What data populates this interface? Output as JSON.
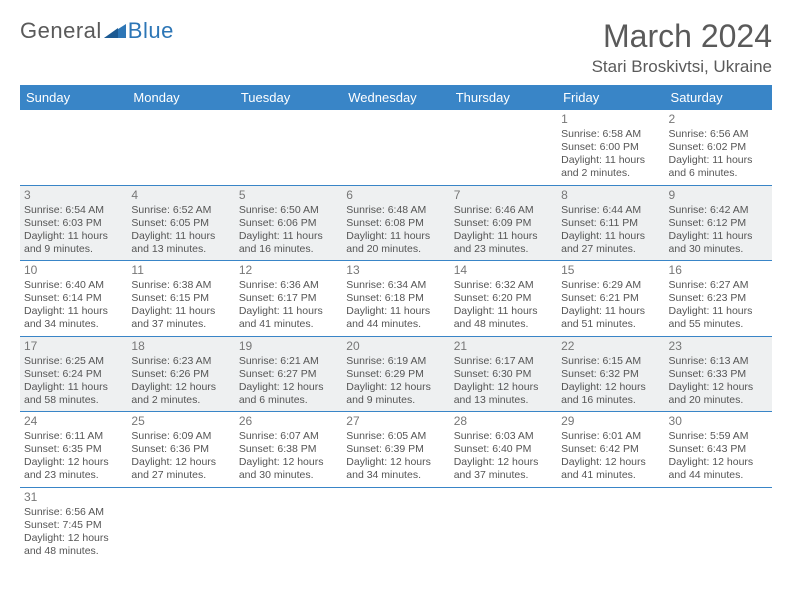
{
  "logo": {
    "part1": "General",
    "part2": "Blue"
  },
  "title": "March 2024",
  "location": "Stari Broskivtsi, Ukraine",
  "colors": {
    "header_bg": "#3985c7",
    "header_text": "#ffffff",
    "row_even_bg": "#eef0f1",
    "row_odd_bg": "#ffffff",
    "divider": "#3985c7",
    "body_text": "#555555",
    "daynum_text": "#777777",
    "title_text": "#5a5a5a",
    "logo_gray": "#5a5a5a",
    "logo_blue": "#2d76b6"
  },
  "weekdays": [
    "Sunday",
    "Monday",
    "Tuesday",
    "Wednesday",
    "Thursday",
    "Friday",
    "Saturday"
  ],
  "weeks": [
    [
      null,
      null,
      null,
      null,
      null,
      {
        "day": "1",
        "sunrise": "Sunrise: 6:58 AM",
        "sunset": "Sunset: 6:00 PM",
        "daylight": "Daylight: 11 hours and 2 minutes."
      },
      {
        "day": "2",
        "sunrise": "Sunrise: 6:56 AM",
        "sunset": "Sunset: 6:02 PM",
        "daylight": "Daylight: 11 hours and 6 minutes."
      }
    ],
    [
      {
        "day": "3",
        "sunrise": "Sunrise: 6:54 AM",
        "sunset": "Sunset: 6:03 PM",
        "daylight": "Daylight: 11 hours and 9 minutes."
      },
      {
        "day": "4",
        "sunrise": "Sunrise: 6:52 AM",
        "sunset": "Sunset: 6:05 PM",
        "daylight": "Daylight: 11 hours and 13 minutes."
      },
      {
        "day": "5",
        "sunrise": "Sunrise: 6:50 AM",
        "sunset": "Sunset: 6:06 PM",
        "daylight": "Daylight: 11 hours and 16 minutes."
      },
      {
        "day": "6",
        "sunrise": "Sunrise: 6:48 AM",
        "sunset": "Sunset: 6:08 PM",
        "daylight": "Daylight: 11 hours and 20 minutes."
      },
      {
        "day": "7",
        "sunrise": "Sunrise: 6:46 AM",
        "sunset": "Sunset: 6:09 PM",
        "daylight": "Daylight: 11 hours and 23 minutes."
      },
      {
        "day": "8",
        "sunrise": "Sunrise: 6:44 AM",
        "sunset": "Sunset: 6:11 PM",
        "daylight": "Daylight: 11 hours and 27 minutes."
      },
      {
        "day": "9",
        "sunrise": "Sunrise: 6:42 AM",
        "sunset": "Sunset: 6:12 PM",
        "daylight": "Daylight: 11 hours and 30 minutes."
      }
    ],
    [
      {
        "day": "10",
        "sunrise": "Sunrise: 6:40 AM",
        "sunset": "Sunset: 6:14 PM",
        "daylight": "Daylight: 11 hours and 34 minutes."
      },
      {
        "day": "11",
        "sunrise": "Sunrise: 6:38 AM",
        "sunset": "Sunset: 6:15 PM",
        "daylight": "Daylight: 11 hours and 37 minutes."
      },
      {
        "day": "12",
        "sunrise": "Sunrise: 6:36 AM",
        "sunset": "Sunset: 6:17 PM",
        "daylight": "Daylight: 11 hours and 41 minutes."
      },
      {
        "day": "13",
        "sunrise": "Sunrise: 6:34 AM",
        "sunset": "Sunset: 6:18 PM",
        "daylight": "Daylight: 11 hours and 44 minutes."
      },
      {
        "day": "14",
        "sunrise": "Sunrise: 6:32 AM",
        "sunset": "Sunset: 6:20 PM",
        "daylight": "Daylight: 11 hours and 48 minutes."
      },
      {
        "day": "15",
        "sunrise": "Sunrise: 6:29 AM",
        "sunset": "Sunset: 6:21 PM",
        "daylight": "Daylight: 11 hours and 51 minutes."
      },
      {
        "day": "16",
        "sunrise": "Sunrise: 6:27 AM",
        "sunset": "Sunset: 6:23 PM",
        "daylight": "Daylight: 11 hours and 55 minutes."
      }
    ],
    [
      {
        "day": "17",
        "sunrise": "Sunrise: 6:25 AM",
        "sunset": "Sunset: 6:24 PM",
        "daylight": "Daylight: 11 hours and 58 minutes."
      },
      {
        "day": "18",
        "sunrise": "Sunrise: 6:23 AM",
        "sunset": "Sunset: 6:26 PM",
        "daylight": "Daylight: 12 hours and 2 minutes."
      },
      {
        "day": "19",
        "sunrise": "Sunrise: 6:21 AM",
        "sunset": "Sunset: 6:27 PM",
        "daylight": "Daylight: 12 hours and 6 minutes."
      },
      {
        "day": "20",
        "sunrise": "Sunrise: 6:19 AM",
        "sunset": "Sunset: 6:29 PM",
        "daylight": "Daylight: 12 hours and 9 minutes."
      },
      {
        "day": "21",
        "sunrise": "Sunrise: 6:17 AM",
        "sunset": "Sunset: 6:30 PM",
        "daylight": "Daylight: 12 hours and 13 minutes."
      },
      {
        "day": "22",
        "sunrise": "Sunrise: 6:15 AM",
        "sunset": "Sunset: 6:32 PM",
        "daylight": "Daylight: 12 hours and 16 minutes."
      },
      {
        "day": "23",
        "sunrise": "Sunrise: 6:13 AM",
        "sunset": "Sunset: 6:33 PM",
        "daylight": "Daylight: 12 hours and 20 minutes."
      }
    ],
    [
      {
        "day": "24",
        "sunrise": "Sunrise: 6:11 AM",
        "sunset": "Sunset: 6:35 PM",
        "daylight": "Daylight: 12 hours and 23 minutes."
      },
      {
        "day": "25",
        "sunrise": "Sunrise: 6:09 AM",
        "sunset": "Sunset: 6:36 PM",
        "daylight": "Daylight: 12 hours and 27 minutes."
      },
      {
        "day": "26",
        "sunrise": "Sunrise: 6:07 AM",
        "sunset": "Sunset: 6:38 PM",
        "daylight": "Daylight: 12 hours and 30 minutes."
      },
      {
        "day": "27",
        "sunrise": "Sunrise: 6:05 AM",
        "sunset": "Sunset: 6:39 PM",
        "daylight": "Daylight: 12 hours and 34 minutes."
      },
      {
        "day": "28",
        "sunrise": "Sunrise: 6:03 AM",
        "sunset": "Sunset: 6:40 PM",
        "daylight": "Daylight: 12 hours and 37 minutes."
      },
      {
        "day": "29",
        "sunrise": "Sunrise: 6:01 AM",
        "sunset": "Sunset: 6:42 PM",
        "daylight": "Daylight: 12 hours and 41 minutes."
      },
      {
        "day": "30",
        "sunrise": "Sunrise: 5:59 AM",
        "sunset": "Sunset: 6:43 PM",
        "daylight": "Daylight: 12 hours and 44 minutes."
      }
    ],
    [
      {
        "day": "31",
        "sunrise": "Sunrise: 6:56 AM",
        "sunset": "Sunset: 7:45 PM",
        "daylight": "Daylight: 12 hours and 48 minutes."
      },
      null,
      null,
      null,
      null,
      null,
      null
    ]
  ]
}
